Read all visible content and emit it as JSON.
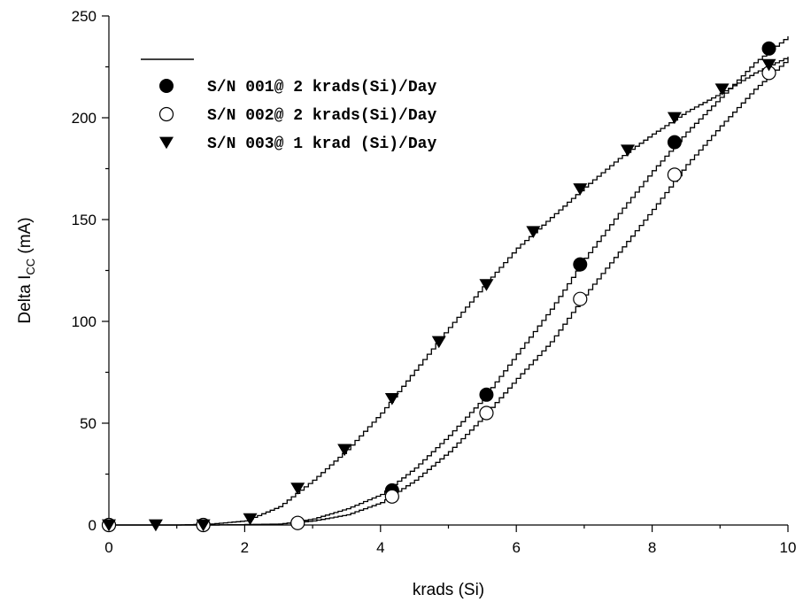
{
  "chart_data": {
    "type": "scatter",
    "xlabel": "krads (Si)",
    "ylabel": "Delta I",
    "ylabel_sub": "CC",
    "ylabel_unit": " (mA)",
    "xlim": [
      0,
      10
    ],
    "ylim": [
      0,
      250
    ],
    "x_ticks": [
      0,
      2,
      4,
      6,
      8,
      10
    ],
    "y_ticks": [
      0,
      50,
      100,
      150,
      200,
      250
    ],
    "x_minor_ticks": [
      1,
      3,
      5,
      7,
      9
    ],
    "y_minor_ticks": [
      25,
      75,
      125,
      175,
      225
    ],
    "grid": false,
    "legend_position": "top-left",
    "series": [
      {
        "name": "S/N 001@ 2 krads(Si)/Day",
        "marker": "filled-circle",
        "color": "#000000",
        "x": [
          0,
          1.39,
          2.78,
          4.17,
          5.56,
          6.94,
          8.33,
          9.72
        ],
        "y": [
          0,
          0,
          1,
          17,
          64,
          128,
          188,
          234
        ],
        "fit": [
          [
            0,
            0
          ],
          [
            1.5,
            0
          ],
          [
            2.5,
            0.3
          ],
          [
            3.0,
            3
          ],
          [
            3.5,
            8
          ],
          [
            4.0,
            15
          ],
          [
            4.5,
            28
          ],
          [
            5.0,
            44
          ],
          [
            5.5,
            62
          ],
          [
            6.0,
            84
          ],
          [
            6.5,
            106
          ],
          [
            7.0,
            131
          ],
          [
            7.5,
            153
          ],
          [
            8.0,
            174
          ],
          [
            8.5,
            193
          ],
          [
            9.0,
            210
          ],
          [
            9.5,
            227
          ],
          [
            10.0,
            240
          ]
        ]
      },
      {
        "name": "S/N 002@ 2 krads(Si)/Day",
        "marker": "open-circle",
        "color": "#000000",
        "x": [
          0,
          1.39,
          2.78,
          4.17,
          5.56,
          6.94,
          8.33,
          9.72
        ],
        "y": [
          0,
          0,
          1,
          14,
          55,
          111,
          172,
          222
        ],
        "fit": [
          [
            0,
            0
          ],
          [
            1.5,
            0
          ],
          [
            2.5,
            0.5
          ],
          [
            3.0,
            2
          ],
          [
            3.5,
            5
          ],
          [
            4.0,
            11
          ],
          [
            4.5,
            22
          ],
          [
            5.0,
            36
          ],
          [
            5.5,
            53
          ],
          [
            6.0,
            72
          ],
          [
            6.5,
            90
          ],
          [
            7.0,
            113
          ],
          [
            7.5,
            134
          ],
          [
            8.0,
            155
          ],
          [
            8.5,
            177
          ],
          [
            9.0,
            196
          ],
          [
            9.5,
            214
          ],
          [
            10.0,
            229
          ]
        ]
      },
      {
        "name": "S/N 003@ 1 krad (Si)/Day",
        "marker": "filled-triangle-down",
        "color": "#000000",
        "x": [
          0,
          0.69,
          1.39,
          2.08,
          2.78,
          3.47,
          4.17,
          4.86,
          5.56,
          6.25,
          6.94,
          7.64,
          8.33,
          9.03,
          9.72
        ],
        "y": [
          0,
          0,
          0,
          3,
          18,
          37,
          62,
          90,
          118,
          144,
          165,
          184,
          200,
          214,
          226
        ],
        "fit": [
          [
            0,
            0
          ],
          [
            1.0,
            0
          ],
          [
            1.5,
            0.5
          ],
          [
            2.0,
            2
          ],
          [
            2.5,
            9
          ],
          [
            3.0,
            22
          ],
          [
            3.5,
            37
          ],
          [
            4.0,
            55
          ],
          [
            4.5,
            76
          ],
          [
            5.0,
            97
          ],
          [
            5.5,
            117
          ],
          [
            6.0,
            136
          ],
          [
            6.5,
            151
          ],
          [
            7.0,
            166
          ],
          [
            7.5,
            180
          ],
          [
            8.0,
            192
          ],
          [
            8.5,
            203
          ],
          [
            9.0,
            212
          ],
          [
            9.5,
            222
          ],
          [
            10.0,
            230
          ]
        ]
      }
    ]
  }
}
